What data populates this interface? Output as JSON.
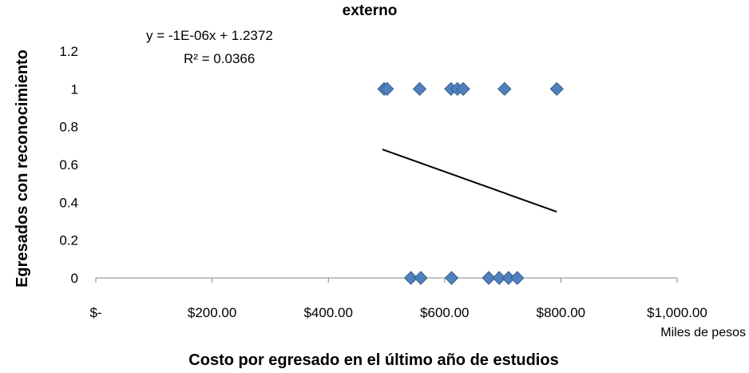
{
  "chart_data": {
    "type": "scatter",
    "title": "externo",
    "xlabel": "Costo por egresado en el último año de estudios",
    "ylabel": "Egresados con reconocimiento",
    "x_unit_label": "Miles de pesos",
    "xlim": [
      0,
      1000
    ],
    "ylim": [
      0,
      1.2
    ],
    "x_ticks": [
      0,
      200,
      400,
      600,
      800,
      1000
    ],
    "x_tick_labels": [
      "$-",
      "$200.00",
      "$400.00",
      "$600.00",
      "$800.00",
      "$1,000.00"
    ],
    "y_ticks": [
      0,
      0.2,
      0.4,
      0.6,
      0.8,
      1,
      1.2
    ],
    "y_tick_labels": [
      "0",
      "0.2",
      "0.4",
      "0.6",
      "0.8",
      "1",
      "1.2"
    ],
    "grid": false,
    "colors": {
      "marker": "#4f81bd",
      "marker_edge": "#385d8a",
      "trendline": "#000000",
      "axis": "#868686"
    },
    "series": [
      {
        "points": [
          [
            496,
            1
          ],
          [
            501,
            1
          ],
          [
            557,
            1
          ],
          [
            611,
            1
          ],
          [
            622,
            1
          ],
          [
            632,
            1
          ],
          [
            703,
            1
          ],
          [
            793,
            1
          ],
          [
            542,
            0
          ],
          [
            559,
            0
          ],
          [
            612,
            0
          ],
          [
            676,
            0
          ],
          [
            694,
            0
          ],
          [
            710,
            0
          ],
          [
            725,
            0
          ]
        ]
      }
    ],
    "trendline": {
      "type": "linear",
      "equation": "y = -1E-06x + 1.2372",
      "r_squared": "R² = 0.0366",
      "x_range": [
        493,
        793
      ],
      "y_start": 0.68,
      "y_end": 0.35
    }
  }
}
